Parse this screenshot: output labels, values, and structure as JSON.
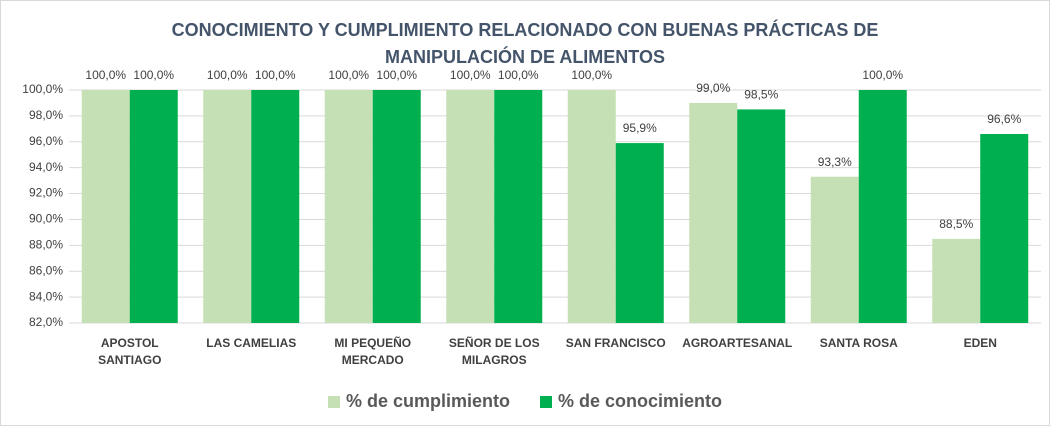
{
  "chart_data": {
    "type": "bar",
    "title": "CONOCIMIENTO Y CUMPLIMIENTO RELACIONADO CON BUENAS PRÁCTICAS DE MANIPULACIÓN DE ALIMENTOS",
    "categories": [
      "APOSTOL SANTIAGO",
      "LAS CAMELIAS",
      "MI PEQUEÑO MERCADO",
      "SEÑOR DE LOS MILAGROS",
      "SAN FRANCISCO",
      "AGROARTESANAL",
      "SANTA ROSA",
      "EDEN"
    ],
    "series": [
      {
        "name": "% de cumplimiento",
        "color": "#c5e0b4",
        "values": [
          100,
          100,
          100,
          100,
          100,
          99,
          93.3,
          88.5
        ],
        "value_labels": [
          "100,0%",
          "100,0%",
          "100,0%",
          "100,0%",
          "100,0%",
          "99,0%",
          "93,3%",
          "88,5%"
        ]
      },
      {
        "name": "% de conocimiento",
        "color": "#00b050",
        "values": [
          100,
          100,
          100,
          100,
          95.9,
          98.5,
          100,
          96.6
        ],
        "value_labels": [
          "100,0%",
          "100,0%",
          "100,0%",
          "100,0%",
          "95,9%",
          "98,5%",
          "100,0%",
          "96,6%"
        ]
      }
    ],
    "ylim": [
      82,
      100
    ],
    "yticks": [
      {
        "value": 82,
        "label": "82,0%"
      },
      {
        "value": 84,
        "label": "84,0%"
      },
      {
        "value": 86,
        "label": "86,0%"
      },
      {
        "value": 88,
        "label": "88,0%"
      },
      {
        "value": 90,
        "label": "90,0%"
      },
      {
        "value": 92,
        "label": "92,0%"
      },
      {
        "value": 94,
        "label": "94,0%"
      },
      {
        "value": 96,
        "label": "96,0%"
      },
      {
        "value": 98,
        "label": "98,0%"
      },
      {
        "value": 100,
        "label": "100,0%"
      }
    ],
    "grid": true,
    "legend": "bottom"
  }
}
